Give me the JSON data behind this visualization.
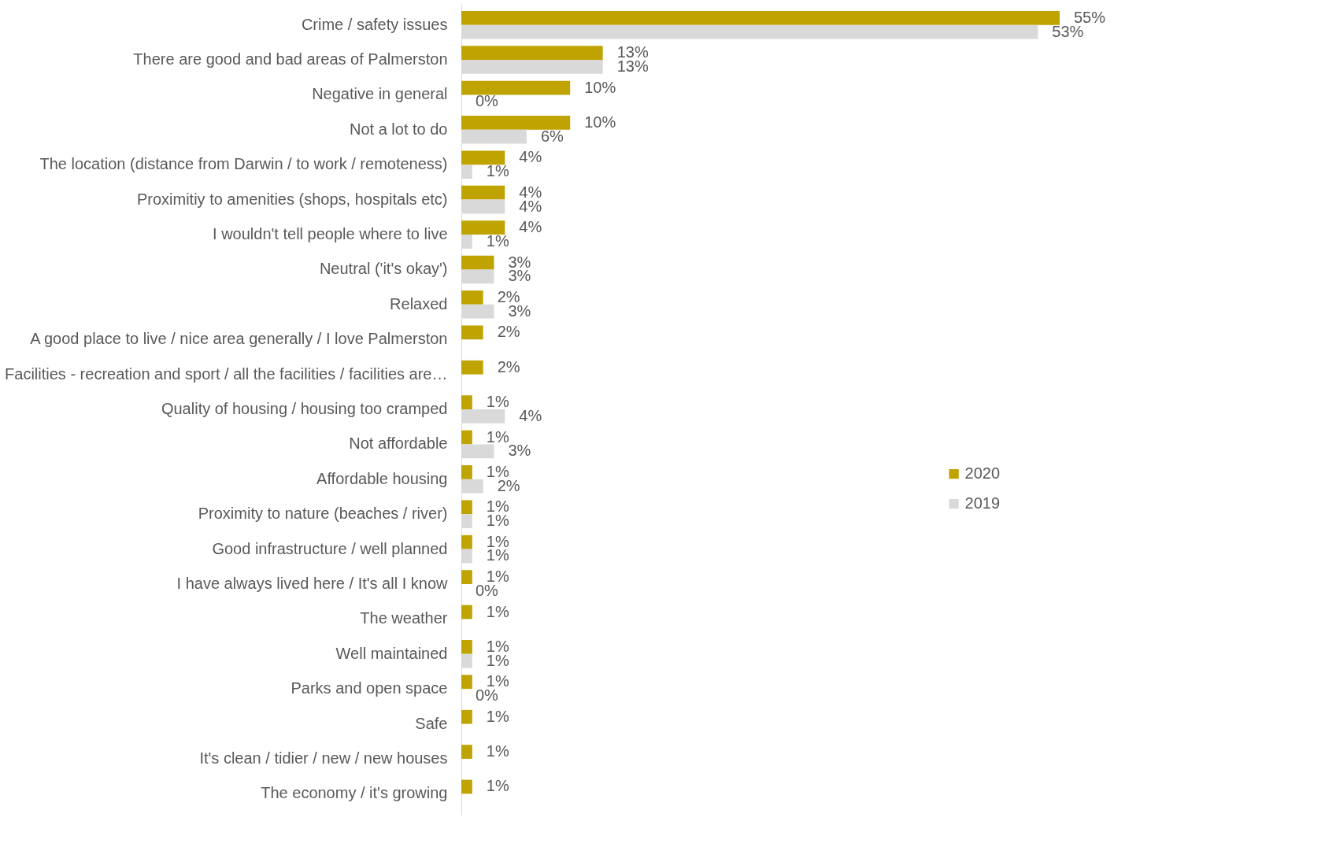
{
  "chart_data": {
    "type": "bar",
    "orientation": "horizontal",
    "legend": "right",
    "grid": false,
    "categories": [
      "Crime / safety issues",
      "There are good and bad areas of Palmerston",
      "Negative in general",
      "Not a lot to do",
      "The location (distance from Darwin / to work / remoteness)",
      "Proximitiy to amenities (shops, hospitals etc)",
      "I wouldn't tell people where to live",
      "Neutral ('it's okay')",
      "Relaxed",
      "A good place to live / nice area generally / I love Palmerston",
      "Facilities - recreation and sport / all the facilities / facilities are…",
      "Quality of housing / housing too cramped",
      "Not affordable",
      "Affordable housing",
      "Proximity to nature (beaches / river)",
      "Good infrastructure / well planned",
      "I have always lived here /  It's all I know",
      "The weather",
      "Well maintained",
      "Parks and open space",
      "Safe",
      "It's clean / tidier / new / new houses",
      "The economy / it's growing"
    ],
    "series": [
      {
        "name": "2020",
        "color": "#bfa300",
        "values": [
          55,
          13,
          10,
          10,
          4,
          4,
          4,
          3,
          2,
          2,
          2,
          1,
          1,
          1,
          1,
          1,
          1,
          1,
          1,
          1,
          1,
          1,
          1
        ],
        "value_labels": [
          "55%",
          "13%",
          "10%",
          "10%",
          "4%",
          "4%",
          "4%",
          "3%",
          "2%",
          "2%",
          "2%",
          "1%",
          "1%",
          "1%",
          "1%",
          "1%",
          "1%",
          "1%",
          "1%",
          "1%",
          "1%",
          "1%",
          "1%"
        ]
      },
      {
        "name": "2019",
        "color": "#d9d9d9",
        "values": [
          53,
          13,
          0,
          6,
          1,
          4,
          1,
          3,
          3,
          null,
          null,
          4,
          3,
          2,
          1,
          1,
          0,
          null,
          1,
          0,
          null,
          null,
          null
        ],
        "value_labels": [
          "53%",
          "13%",
          "0%",
          "6%",
          "1%",
          "4%",
          "1%",
          "3%",
          "3%",
          null,
          null,
          "4%",
          "3%",
          "2%",
          "1%",
          "1%",
          "0%",
          null,
          "1%",
          "0%",
          null,
          null,
          null
        ]
      }
    ]
  }
}
